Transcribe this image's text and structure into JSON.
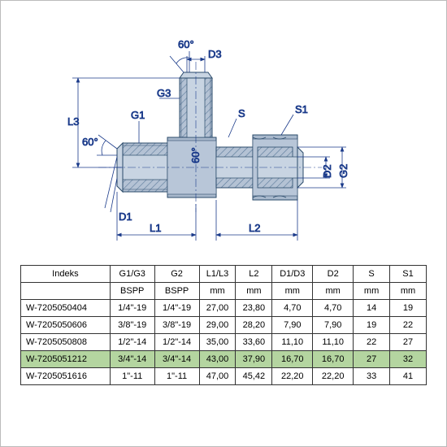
{
  "diagram": {
    "labels": {
      "angle1": "60°",
      "angle2": "60°",
      "angle3": "60°",
      "D1": "D1",
      "D2": "D2",
      "D3": "D3",
      "G1": "G1",
      "G2": "G2",
      "G3": "G3",
      "L1": "L1",
      "L2": "L2",
      "L3": "L3",
      "S": "S",
      "S1": "S1"
    },
    "colors": {
      "dimension": "#1a3a8a",
      "part_fill": "#9caec2",
      "part_hatch": "#5a7a9a",
      "part_outline": "#2a4a6a"
    }
  },
  "table": {
    "columns": [
      "Indeks",
      "G1/G3",
      "G2",
      "L1/L3",
      "L2",
      "D1/D3",
      "D2",
      "S",
      "S1"
    ],
    "units": [
      "",
      "BSPP",
      "BSPP",
      "mm",
      "mm",
      "mm",
      "mm",
      "mm",
      "mm"
    ],
    "rows": [
      [
        "W-7205050404",
        "1/4\"-19",
        "1/4\"-19",
        "27,00",
        "23,80",
        "4,70",
        "4,70",
        "14",
        "19"
      ],
      [
        "W-7205050606",
        "3/8\"-19",
        "3/8\"-19",
        "29,00",
        "28,20",
        "7,90",
        "7,90",
        "19",
        "22"
      ],
      [
        "W-7205050808",
        "1/2\"-14",
        "1/2\"-14",
        "35,00",
        "33,60",
        "11,10",
        "11,10",
        "22",
        "27"
      ],
      [
        "W-7205051212",
        "3/4\"-14",
        "3/4\"-14",
        "43,00",
        "37,90",
        "16,70",
        "16,70",
        "27",
        "32"
      ],
      [
        "W-7205051616",
        "1\"-11",
        "1\"-11",
        "47,00",
        "45,42",
        "22,20",
        "22,20",
        "33",
        "41"
      ]
    ],
    "highlight_row": 3,
    "col_widths": [
      "22%",
      "11%",
      "11%",
      "9%",
      "9%",
      "10%",
      "10%",
      "9%",
      "9%"
    ]
  }
}
